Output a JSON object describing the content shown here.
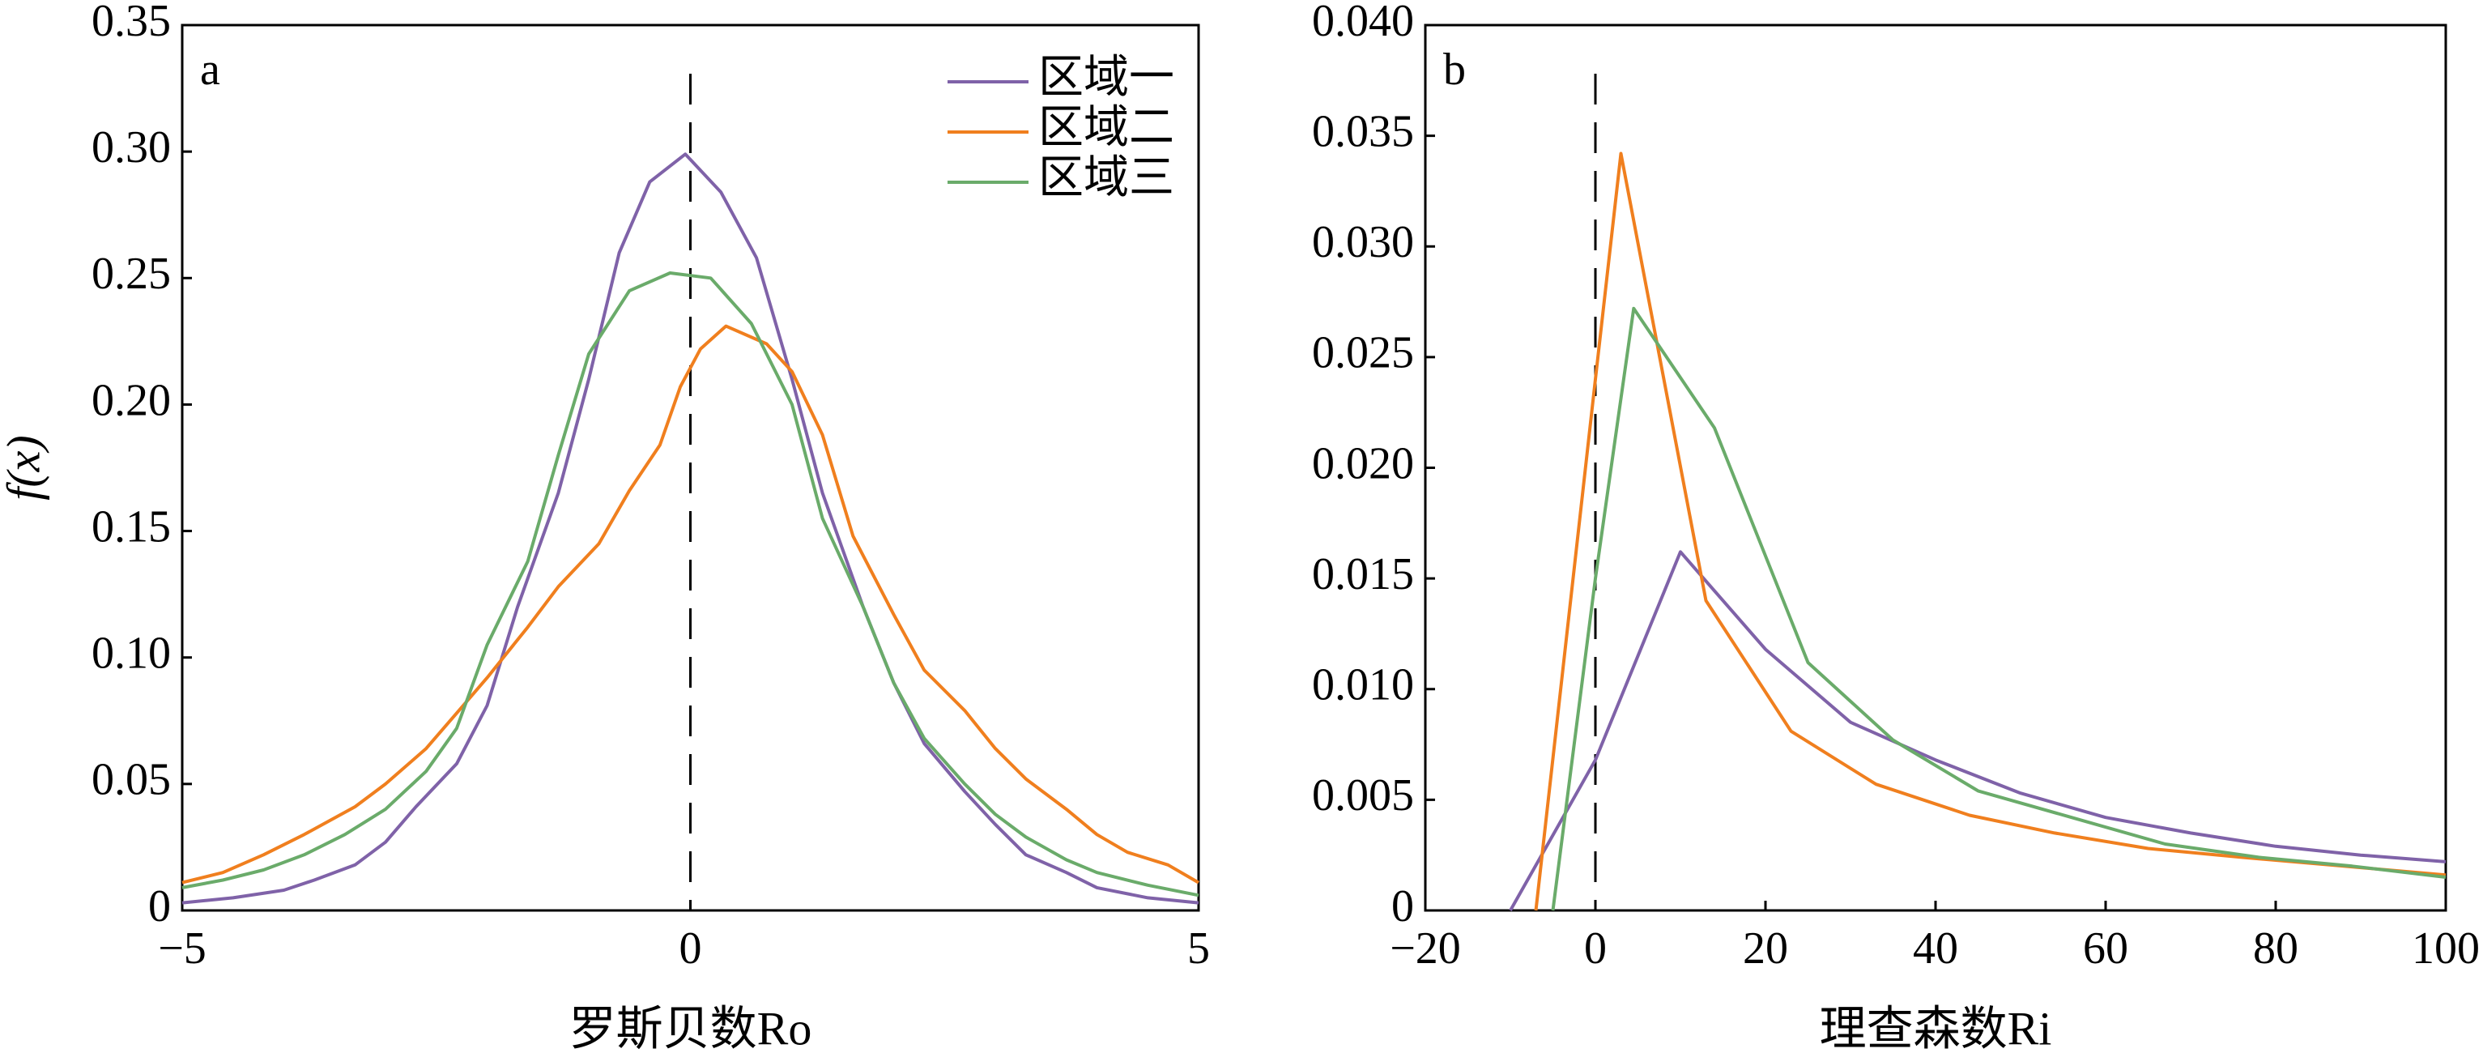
{
  "chart_data": [
    {
      "type": "line",
      "annotation": "a",
      "ylabel": "f(x)",
      "xlabel": "罗斯贝数Ro",
      "xlim": [
        -5,
        5
      ],
      "ylim": [
        0,
        0.35
      ],
      "xticks": [
        {
          "value": -5,
          "label": "−5"
        },
        0,
        5
      ],
      "yticks": [
        0,
        0.05,
        {
          "value": 0.1,
          "label": "0.10"
        },
        0.15,
        {
          "value": 0.2,
          "label": "0.20"
        },
        0.25,
        {
          "value": 0.3,
          "label": "0.30"
        },
        0.35
      ],
      "vline": 0,
      "legend": "upper right",
      "series": [
        {
          "name": "区域一",
          "color": "#7f62a8",
          "x": [
            -5,
            -4.5,
            -4,
            -3.7,
            -3.3,
            -3,
            -2.7,
            -2.3,
            -2,
            -1.7,
            -1.3,
            -1,
            -0.7,
            -0.4,
            -0.05,
            0.3,
            0.65,
            1,
            1.3,
            1.7,
            2,
            2.3,
            2.7,
            3,
            3.3,
            3.7,
            4,
            4.5,
            5
          ],
          "values": [
            0.003,
            0.005,
            0.008,
            0.012,
            0.018,
            0.027,
            0.041,
            0.058,
            0.081,
            0.12,
            0.165,
            0.21,
            0.26,
            0.288,
            0.299,
            0.284,
            0.258,
            0.21,
            0.165,
            0.12,
            0.09,
            0.066,
            0.047,
            0.034,
            0.022,
            0.015,
            0.009,
            0.005,
            0.003
          ]
        },
        {
          "name": "区域二",
          "color": "#f07f1e",
          "x": [
            -5,
            -4.6,
            -4.2,
            -3.8,
            -3.3,
            -3,
            -2.6,
            -2.3,
            -2,
            -1.6,
            -1.3,
            -0.9,
            -0.6,
            -0.3,
            -0.1,
            0.1,
            0.35,
            0.75,
            1,
            1.3,
            1.6,
            2,
            2.3,
            2.7,
            3,
            3.3,
            3.7,
            4,
            4.3,
            4.7,
            5
          ],
          "values": [
            0.011,
            0.015,
            0.022,
            0.03,
            0.041,
            0.05,
            0.064,
            0.078,
            0.092,
            0.112,
            0.128,
            0.145,
            0.166,
            0.184,
            0.207,
            0.222,
            0.231,
            0.224,
            0.213,
            0.188,
            0.148,
            0.117,
            0.095,
            0.079,
            0.064,
            0.052,
            0.04,
            0.03,
            0.023,
            0.018,
            0.011
          ]
        },
        {
          "name": "区域三",
          "color": "#6aab6a",
          "x": [
            -5,
            -4.6,
            -4.2,
            -3.8,
            -3.4,
            -3,
            -2.6,
            -2.3,
            -2,
            -1.6,
            -1.3,
            -1,
            -0.6,
            -0.2,
            0.2,
            0.6,
            1,
            1.3,
            1.7,
            2,
            2.3,
            2.7,
            3,
            3.3,
            3.7,
            4,
            4.5,
            5
          ],
          "values": [
            0.009,
            0.012,
            0.016,
            0.022,
            0.03,
            0.04,
            0.055,
            0.072,
            0.105,
            0.138,
            0.18,
            0.22,
            0.245,
            0.252,
            0.25,
            0.232,
            0.2,
            0.155,
            0.12,
            0.09,
            0.068,
            0.05,
            0.038,
            0.029,
            0.02,
            0.015,
            0.01,
            0.006
          ]
        }
      ]
    },
    {
      "type": "line",
      "annotation": "b",
      "xlabel": "理查森数Ri",
      "xlim": [
        -20,
        100
      ],
      "ylim": [
        0,
        0.04
      ],
      "xticks": [
        {
          "value": -20,
          "label": "−20"
        },
        0,
        20,
        40,
        60,
        80,
        100
      ],
      "yticks": [
        0,
        0.005,
        {
          "value": 0.01,
          "label": "0.010"
        },
        0.015,
        {
          "value": 0.02,
          "label": "0.020"
        },
        0.025,
        {
          "value": 0.03,
          "label": "0.030"
        },
        0.035,
        {
          "value": 0.04,
          "label": "0.040"
        }
      ],
      "vline": 0,
      "series": [
        {
          "color": "#7f62a8",
          "x": [
            -10,
            0,
            10,
            20,
            30,
            40,
            50,
            60,
            70,
            80,
            90,
            100
          ],
          "values": [
            0,
            0.0068,
            0.0162,
            0.0118,
            0.0085,
            0.0068,
            0.0053,
            0.0042,
            0.0035,
            0.0029,
            0.0025,
            0.0022
          ]
        },
        {
          "color": "#f07f1e",
          "x": [
            -7,
            0,
            3,
            13,
            23,
            33,
            44,
            54,
            65,
            76,
            88,
            100
          ],
          "values": [
            0,
            0.024,
            0.0342,
            0.014,
            0.0081,
            0.0057,
            0.0043,
            0.0035,
            0.0028,
            0.0024,
            0.002,
            0.0016
          ]
        },
        {
          "color": "#6aab6a",
          "x": [
            -5,
            0,
            4.5,
            14,
            25,
            35,
            45,
            56,
            67,
            78,
            89,
            100
          ],
          "values": [
            0,
            0.015,
            0.0272,
            0.0218,
            0.0112,
            0.0077,
            0.0054,
            0.0042,
            0.003,
            0.0024,
            0.002,
            0.0015
          ]
        }
      ]
    }
  ]
}
